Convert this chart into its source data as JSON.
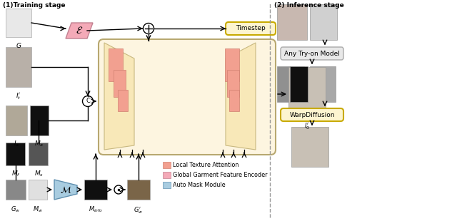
{
  "bg_color": "#ffffff",
  "unet_fill": "#fdf5e0",
  "unet_edge": "#b8a870",
  "local_attn_color": "#f2a090",
  "encoder_color": "#f4aab8",
  "automask_color": "#a8cce0",
  "timestep_fill": "#fdf5d0",
  "timestep_edge": "#c8aa00",
  "warpdiff_fill": "#fdf5d0",
  "warpdiff_edge": "#c8aa00",
  "tryon_fill": "#e8e8e8",
  "tryon_edge": "#aaaaaa",
  "title_train": "(1)Training stage",
  "title_infer": "(2) Inference stage",
  "legend_local": "Local Texture Attention",
  "legend_global": "Global Garment Feature Encoder",
  "legend_auto": "Auto Mask Module",
  "label_Timestep": "Timestep",
  "label_WarpDiff": "WarpDiffusion",
  "label_TryOn": "Any Try-on Model"
}
